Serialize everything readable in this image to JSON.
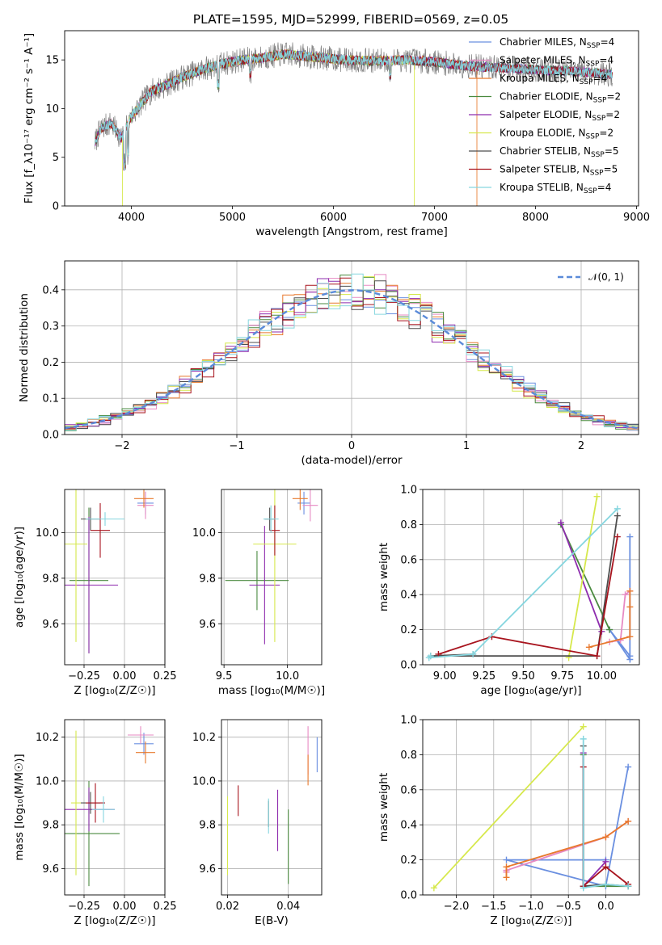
{
  "figure": {
    "title": "PLATE=1595, MJD=52999, FIBERID=0569, z=0.05"
  },
  "colors": {
    "Chabrier MILES": "#6a8fe0",
    "Salpeter MILES": "#e78ac3",
    "Kroupa MILES": "#e8792d",
    "Chabrier ELODIE": "#4a8a3f",
    "Salpeter ELODIE": "#8e2cae",
    "Kroupa ELODIE": "#d6e84c",
    "Chabrier STELIB": "#4d4d4d",
    "Salpeter STELIB": "#a8141e",
    "Kroupa STELIB": "#86d6df",
    "data": "#7f7f7f",
    "normal": "#5b8bd9"
  },
  "chart_data": [
    {
      "id": "spectrum",
      "type": "line",
      "xlabel": "wavelength [Angstrom, rest frame]",
      "ylabel": "Flux [f_λ10⁻¹⁷ erg cm⁻² s⁻¹ A⁻¹]",
      "xlim": [
        3340,
        9020
      ],
      "ylim": [
        0,
        18
      ],
      "xticks": [
        4000,
        5000,
        6000,
        7000,
        8000,
        9000
      ],
      "yticks": [
        0,
        5,
        10,
        15
      ],
      "legend": "top-right",
      "grid": false,
      "data_range": [
        3640,
        8760
      ],
      "envelope": {
        "x": [
          3640,
          3700,
          3800,
          3900,
          4000,
          4100,
          4200,
          4300,
          4500,
          4700,
          4900,
          5100,
          5300,
          5500,
          5800,
          6100,
          6400,
          6700,
          7000,
          7300,
          7600,
          8000,
          8400,
          8760
        ],
        "y": [
          6.5,
          8.0,
          8.5,
          7.0,
          9.2,
          10.5,
          11.8,
          12.2,
          13.2,
          14.0,
          14.6,
          15.0,
          15.2,
          15.6,
          15.3,
          15.0,
          14.9,
          15.0,
          14.8,
          14.4,
          14.2,
          14.0,
          13.8,
          13.5
        ]
      },
      "series": [
        {
          "name": "Chabrier MILES",
          "nssp": "4"
        },
        {
          "name": "Salpeter MILES",
          "nssp": "4"
        },
        {
          "name": "Kroupa MILES",
          "nssp": "4",
          "cutoff": 7420
        },
        {
          "name": "Chabrier ELODIE",
          "nssp": "2"
        },
        {
          "name": "Salpeter ELODIE",
          "nssp": "2"
        },
        {
          "name": "Kroupa ELODIE",
          "nssp": "2",
          "cutoff_lo": 3910,
          "cutoff": 6800
        },
        {
          "name": "Chabrier STELIB",
          "nssp": "5"
        },
        {
          "name": "Salpeter STELIB",
          "nssp": "5"
        },
        {
          "name": "Kroupa STELIB",
          "nssp": "4"
        }
      ]
    },
    {
      "id": "residuals",
      "type": "line",
      "xlabel": "(data-model)/error",
      "ylabel": "Normed distribution",
      "xlim": [
        -2.5,
        2.5
      ],
      "ylim": [
        0,
        0.48
      ],
      "xticks": [
        -2,
        -1,
        0,
        1,
        2
      ],
      "yticks": [
        0.0,
        0.1,
        0.2,
        0.3,
        0.4
      ],
      "grid": true,
      "legend": "top-right",
      "legend_label": "𝒩(0, 1)",
      "bin_width": 0.1
    },
    {
      "id": "z_age",
      "type": "scatter",
      "xlabel": "Z [log₁₀(Z/Z☉)]",
      "ylabel": "age  [log₁₀(age/yr)]",
      "xlim": [
        -0.37,
        0.25
      ],
      "ylim": [
        9.42,
        10.19
      ],
      "xticks": [
        -0.25,
        0.0,
        0.25
      ],
      "yticks": [
        9.6,
        9.8,
        10.0
      ],
      "grid": true,
      "points": [
        {
          "series": "Chabrier MILES",
          "x": 0.13,
          "y": 10.13,
          "xerr": 0.05,
          "yerr": 0.05
        },
        {
          "series": "Salpeter MILES",
          "x": 0.13,
          "y": 10.12,
          "xerr": 0.05,
          "yerr": 0.06
        },
        {
          "series": "Kroupa MILES",
          "x": 0.12,
          "y": 10.15,
          "xerr": 0.06,
          "yerr": 0.04
        },
        {
          "series": "Chabrier ELODIE",
          "x": -0.22,
          "y": 9.79,
          "xerr": 0.12,
          "yerr": 0.32
        },
        {
          "series": "Salpeter ELODIE",
          "x": -0.22,
          "y": 9.77,
          "xerr": 0.18,
          "yerr": 0.3
        },
        {
          "series": "Kroupa ELODIE",
          "x": -0.3,
          "y": 9.95,
          "xerr": 0.07,
          "yerr": 0.43
        },
        {
          "series": "Chabrier STELIB",
          "x": -0.21,
          "y": 10.06,
          "xerr": 0.06,
          "yerr": 0.05
        },
        {
          "series": "Salpeter STELIB",
          "x": -0.15,
          "y": 10.01,
          "xerr": 0.06,
          "yerr": 0.12
        },
        {
          "series": "Kroupa STELIB",
          "x": -0.12,
          "y": 10.06,
          "xerr": 0.12,
          "yerr": 0.03
        }
      ]
    },
    {
      "id": "mass_age",
      "type": "scatter",
      "xlabel": "mass [log₁₀(M/M☉)]",
      "ylabel": "",
      "xlim": [
        9.48,
        10.27
      ],
      "ylim": [
        9.42,
        10.19
      ],
      "xticks": [
        9.5,
        10.0
      ],
      "yticks": [
        9.6,
        9.8,
        10.0
      ],
      "grid": true,
      "points": [
        {
          "series": "Chabrier MILES",
          "x": 10.13,
          "y": 10.13,
          "xerr": 0.05,
          "yerr": 0.05
        },
        {
          "series": "Salpeter MILES",
          "x": 10.18,
          "y": 10.12,
          "xerr": 0.06,
          "yerr": 0.07
        },
        {
          "series": "Kroupa MILES",
          "x": 10.1,
          "y": 10.15,
          "xerr": 0.06,
          "yerr": 0.05
        },
        {
          "series": "Chabrier ELODIE",
          "x": 9.76,
          "y": 9.79,
          "xerr": 0.25,
          "yerr": 0.13
        },
        {
          "series": "Salpeter ELODIE",
          "x": 9.82,
          "y": 9.77,
          "xerr": 0.12,
          "yerr": 0.26
        },
        {
          "series": "Kroupa ELODIE",
          "x": 9.9,
          "y": 9.95,
          "xerr": 0.17,
          "yerr": 0.43
        },
        {
          "series": "Chabrier STELIB",
          "x": 9.86,
          "y": 10.06,
          "xerr": 0.04,
          "yerr": 0.05
        },
        {
          "series": "Salpeter STELIB",
          "x": 9.9,
          "y": 10.01,
          "xerr": 0.04,
          "yerr": 0.11
        },
        {
          "series": "Kroupa STELIB",
          "x": 9.87,
          "y": 10.06,
          "xerr": 0.06,
          "yerr": 0.06
        }
      ]
    },
    {
      "id": "age_weight",
      "type": "line",
      "xlabel": "age  [log₁₀(age/yr)]",
      "ylabel": "mass weight",
      "xlim": [
        8.86,
        10.24
      ],
      "ylim": [
        0.0,
        1.0
      ],
      "xticks": [
        9.0,
        9.25,
        9.5,
        9.75,
        10.0
      ],
      "yticks": [
        0.0,
        0.2,
        0.4,
        0.6,
        0.8,
        1.0
      ],
      "grid": true,
      "series": [
        {
          "name": "Chabrier MILES",
          "x": [
            10.18,
            10.18,
            10.05,
            10.18
          ],
          "y": [
            0.73,
            0.03,
            0.2,
            0.05
          ]
        },
        {
          "name": "Salpeter MILES",
          "x": [
            10.18,
            10.15,
            10.12,
            10.05
          ],
          "y": [
            0.42,
            0.4,
            0.14,
            0.13
          ]
        },
        {
          "name": "Kroupa MILES",
          "x": [
            10.18,
            10.18,
            10.18,
            9.92
          ],
          "y": [
            0.42,
            0.33,
            0.16,
            0.1
          ]
        },
        {
          "name": "Chabrier ELODIE",
          "x": [
            9.74,
            10.05
          ],
          "y": [
            0.8,
            0.2
          ]
        },
        {
          "name": "Salpeter ELODIE",
          "x": [
            9.74,
            10.0
          ],
          "y": [
            0.81,
            0.19
          ]
        },
        {
          "name": "Kroupa ELODIE",
          "x": [
            9.97,
            9.79
          ],
          "y": [
            0.96,
            0.04
          ]
        },
        {
          "name": "Chabrier STELIB",
          "x": [
            10.1,
            9.97,
            8.91,
            9.18
          ],
          "y": [
            0.85,
            0.05,
            0.05,
            0.06
          ]
        },
        {
          "name": "Salpeter STELIB",
          "x": [
            10.1,
            9.97,
            9.3,
            8.96
          ],
          "y": [
            0.73,
            0.05,
            0.16,
            0.06
          ]
        },
        {
          "name": "Kroupa STELIB",
          "x": [
            10.1,
            9.18,
            8.9,
            8.91
          ],
          "y": [
            0.89,
            0.06,
            0.04,
            0.05
          ]
        }
      ]
    },
    {
      "id": "z_mass",
      "type": "scatter",
      "xlabel": "Z [log₁₀(Z/Z☉)]",
      "ylabel": "mass [log₁₀(M/M☉)]",
      "xlim": [
        -0.37,
        0.25
      ],
      "ylim": [
        9.48,
        10.28
      ],
      "xticks": [
        -0.25,
        0.0,
        0.25
      ],
      "yticks": [
        9.6,
        9.8,
        10.0,
        10.2
      ],
      "grid": true,
      "points": [
        {
          "series": "Chabrier MILES",
          "x": 0.12,
          "y": 10.17,
          "xerr": 0.06,
          "yerr": 0.05
        },
        {
          "series": "Salpeter MILES",
          "x": 0.1,
          "y": 10.21,
          "xerr": 0.08,
          "yerr": 0.04
        },
        {
          "series": "Kroupa MILES",
          "x": 0.13,
          "y": 10.13,
          "xerr": 0.06,
          "yerr": 0.05
        },
        {
          "series": "Chabrier ELODIE",
          "x": -0.22,
          "y": 9.76,
          "xerr": 0.19,
          "yerr": 0.24
        },
        {
          "series": "Salpeter ELODIE",
          "x": -0.22,
          "y": 9.87,
          "xerr": 0.16,
          "yerr": 0.1
        },
        {
          "series": "Kroupa ELODIE",
          "x": -0.3,
          "y": 9.9,
          "xerr": 0.03,
          "yerr": 0.33
        },
        {
          "series": "Chabrier STELIB",
          "x": -0.21,
          "y": 9.9,
          "xerr": 0.06,
          "yerr": 0.05
        },
        {
          "series": "Salpeter STELIB",
          "x": -0.18,
          "y": 9.9,
          "xerr": 0.06,
          "yerr": 0.09
        },
        {
          "series": "Kroupa STELIB",
          "x": -0.13,
          "y": 9.87,
          "xerr": 0.07,
          "yerr": 0.06
        }
      ]
    },
    {
      "id": "ebv_mass",
      "type": "scatter",
      "xlabel": "E(B-V)",
      "ylabel": "",
      "xlim": [
        0.018,
        0.051
      ],
      "ylim": [
        9.48,
        10.28
      ],
      "xticks": [
        0.02,
        0.04
      ],
      "yticks": [
        9.6,
        9.8,
        10.0,
        10.2
      ],
      "grid": true,
      "points": [
        {
          "series": "Chabrier MILES",
          "x": 0.0495,
          "y": 10.12,
          "yerr": 0.08
        },
        {
          "series": "Salpeter MILES",
          "x": 0.0465,
          "y": 10.14,
          "yerr": 0.11
        },
        {
          "series": "Kroupa MILES",
          "x": 0.0465,
          "y": 10.05,
          "yerr": 0.07
        },
        {
          "series": "Chabrier ELODIE",
          "x": 0.04,
          "y": 9.7,
          "yerr": 0.17
        },
        {
          "series": "Salpeter ELODIE",
          "x": 0.0365,
          "y": 9.82,
          "yerr": 0.14
        },
        {
          "series": "Kroupa ELODIE",
          "x": 0.02,
          "y": 9.75,
          "yerr": 0.18
        },
        {
          "series": "Chabrier STELIB",
          "x": 0.0335,
          "y": 9.85,
          "yerr": 0.06
        },
        {
          "series": "Salpeter STELIB",
          "x": 0.0235,
          "y": 9.91,
          "yerr": 0.07
        },
        {
          "series": "Kroupa STELIB",
          "x": 0.0335,
          "y": 9.84,
          "yerr": 0.08
        }
      ]
    },
    {
      "id": "z_weight",
      "type": "line",
      "xlabel": "Z [log₁₀(Z/Z☉)]",
      "ylabel": "mass weight",
      "xlim": [
        -2.45,
        0.45
      ],
      "ylim": [
        0.0,
        1.0
      ],
      "xticks": [
        -2.0,
        -1.5,
        -1.0,
        -0.5,
        0.0
      ],
      "yticks": [
        0.0,
        0.2,
        0.4,
        0.6,
        0.8,
        1.0
      ],
      "grid": true,
      "series": [
        {
          "name": "Chabrier MILES",
          "x": [
            0.3,
            0.0,
            -1.33,
            0.0
          ],
          "y": [
            0.73,
            0.05,
            0.2,
            0.2
          ]
        },
        {
          "name": "Salpeter MILES",
          "x": [
            0.3,
            0.0,
            -1.33,
            -1.33
          ],
          "y": [
            0.42,
            0.33,
            0.14,
            0.13
          ]
        },
        {
          "name": "Kroupa MILES",
          "x": [
            0.3,
            0.0,
            -1.33,
            -1.33
          ],
          "y": [
            0.42,
            0.33,
            0.16,
            0.1
          ]
        },
        {
          "name": "Chabrier ELODIE",
          "x": [
            -0.3,
            -0.3,
            0.3
          ],
          "y": [
            0.8,
            0.05,
            0.05
          ]
        },
        {
          "name": "Salpeter ELODIE",
          "x": [
            -0.3,
            -0.3,
            0.0
          ],
          "y": [
            0.81,
            0.05,
            0.19
          ]
        },
        {
          "name": "Kroupa ELODIE",
          "x": [
            -0.3,
            -2.3
          ],
          "y": [
            0.96,
            0.04
          ]
        },
        {
          "name": "Chabrier STELIB",
          "x": [
            -0.3,
            -0.3,
            0.0,
            0.3
          ],
          "y": [
            0.85,
            0.05,
            0.06,
            0.05
          ]
        },
        {
          "name": "Salpeter STELIB",
          "x": [
            -0.3,
            -0.3,
            0.0,
            0.3
          ],
          "y": [
            0.73,
            0.05,
            0.16,
            0.06
          ]
        },
        {
          "name": "Kroupa STELIB",
          "x": [
            -0.3,
            -0.3,
            0.0,
            0.3
          ],
          "y": [
            0.89,
            0.04,
            0.06,
            0.05
          ]
        }
      ]
    }
  ]
}
